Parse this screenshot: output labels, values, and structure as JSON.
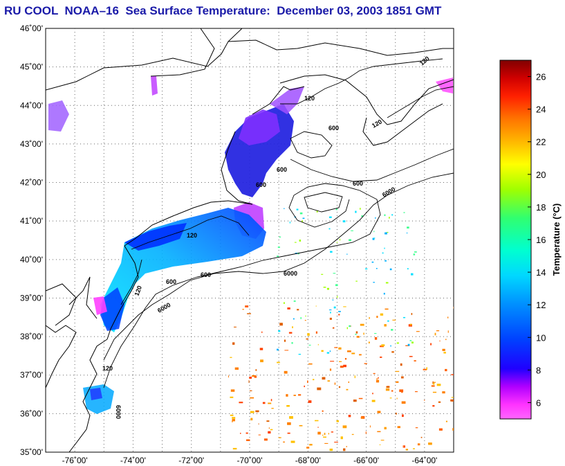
{
  "title": "RU COOL  NOAA–16  Sea Surface Temperature:  December 03, 2003 1851 GMT",
  "map": {
    "lat_range": [
      35,
      46
    ],
    "lon_range": [
      -77,
      -63
    ],
    "lat_labels": [
      "46˚00'",
      "45˚00'",
      "44˚00'",
      "43˚00'",
      "42˚00'",
      "41˚00'",
      "40˚00'",
      "39˚00'",
      "38˚00'",
      "37˚00'",
      "36˚00'",
      "35˚00'"
    ],
    "lon_labels": [
      "-76˚00'",
      "-74˚00'",
      "-72˚00'",
      "-70˚00'",
      "-68˚00'",
      "-66˚00'",
      "-64˚00'"
    ],
    "contour_labels": [
      "120",
      "120",
      "120",
      "600",
      "600",
      "600",
      "600",
      "6000",
      "6000",
      "600",
      "120",
      "6000",
      "120",
      "600",
      "6000",
      "120"
    ],
    "grid": "dotted"
  },
  "colorbar": {
    "title": "Temperature (°C)",
    "range": [
      5,
      27
    ],
    "ticks": [
      "26",
      "24",
      "22",
      "20",
      "18",
      "16",
      "14",
      "12",
      "10",
      "8",
      "6"
    ],
    "colors": [
      "#ff66ff",
      "#ff00ff",
      "#a000ff",
      "#0000ff",
      "#0050ff",
      "#00a8ff",
      "#00e0ff",
      "#00ffc8",
      "#40ff60",
      "#a8ff00",
      "#ffff00",
      "#ffc000",
      "#ff8000",
      "#ff4000",
      "#ff0000",
      "#c00000",
      "#800000"
    ]
  }
}
